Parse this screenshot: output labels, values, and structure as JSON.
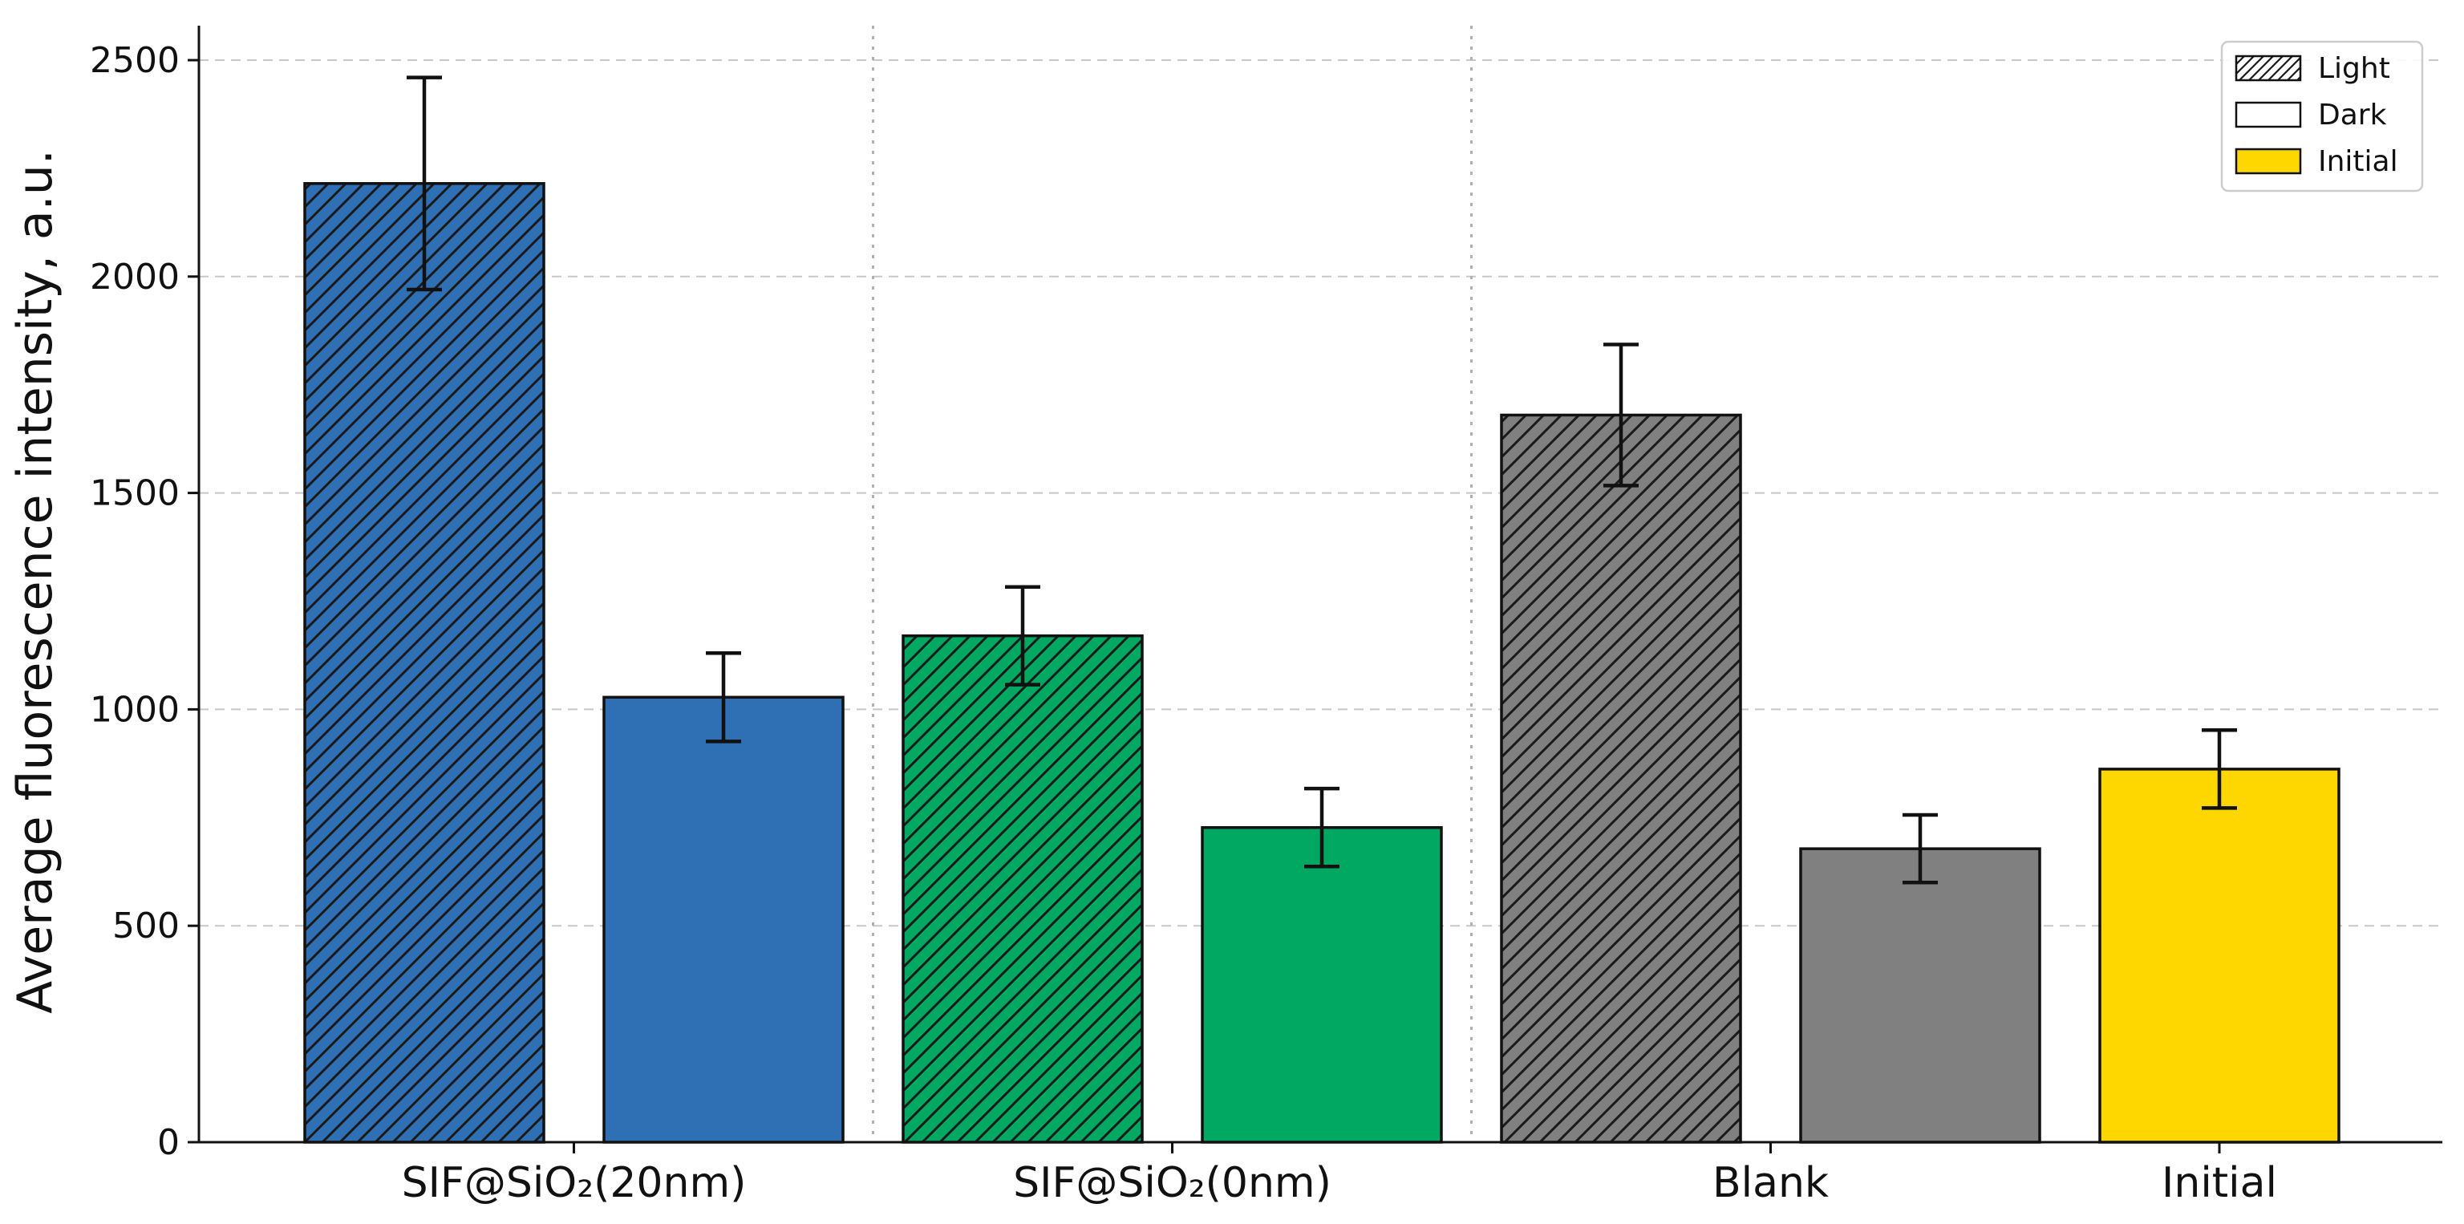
{
  "chart_data": {
    "type": "bar",
    "title": "",
    "xlabel": "",
    "ylabel": "Average fluorescence intensity, a.u.",
    "ylim": [
      0,
      2600
    ],
    "yticks": [
      0,
      500,
      1000,
      1500,
      2000,
      2500
    ],
    "grid": "horizontal dashed",
    "categories": [
      "SIF@SiO₂(20nm)",
      "SIF@SiO₂(0nm)",
      "Blank",
      "Initial"
    ],
    "bars": [
      {
        "group": "SIF@SiO₂(20nm)",
        "condition": "Light",
        "value": 2215,
        "error": 245,
        "color": "#2e70b3",
        "hatched": true
      },
      {
        "group": "SIF@SiO₂(20nm)",
        "condition": "Dark",
        "value": 1028,
        "error": 102,
        "color": "#2e70b3",
        "hatched": false
      },
      {
        "group": "SIF@SiO₂(0nm)",
        "condition": "Light",
        "value": 1170,
        "error": 113,
        "color": "#00a862",
        "hatched": true
      },
      {
        "group": "SIF@SiO₂(0nm)",
        "condition": "Dark",
        "value": 727,
        "error": 90,
        "color": "#00a862",
        "hatched": false
      },
      {
        "group": "Blank",
        "condition": "Light",
        "value": 1680,
        "error": 163,
        "color": "#808080",
        "hatched": true
      },
      {
        "group": "Blank",
        "condition": "Dark",
        "value": 678,
        "error": 78,
        "color": "#808080",
        "hatched": false
      },
      {
        "group": "Initial",
        "condition": "Initial",
        "value": 862,
        "error": 90,
        "color": "#ffd700",
        "hatched": false
      }
    ],
    "legend": {
      "position": "top-right",
      "entries": [
        {
          "label": "Light",
          "style": "hatched",
          "color": "#ffffff"
        },
        {
          "label": "Dark",
          "style": "solid",
          "color": "#ffffff"
        },
        {
          "label": "Initial",
          "style": "solid",
          "color": "#ffd700"
        }
      ]
    }
  }
}
